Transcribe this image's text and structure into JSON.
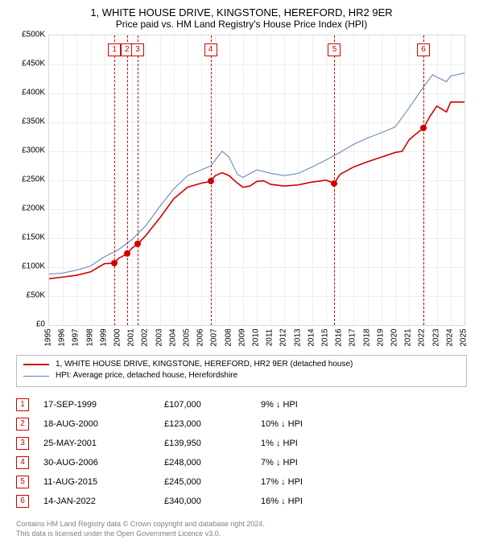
{
  "title": "1, WHITE HOUSE DRIVE, KINGSTONE, HEREFORD, HR2 9ER",
  "subtitle": "Price paid vs. HM Land Registry's House Price Index (HPI)",
  "chart": {
    "type": "line",
    "x_min": 1995,
    "x_max": 2025,
    "x_ticks": [
      1995,
      1996,
      1997,
      1998,
      1999,
      2000,
      2001,
      2002,
      2003,
      2004,
      2005,
      2006,
      2007,
      2008,
      2009,
      2010,
      2011,
      2012,
      2013,
      2014,
      2015,
      2016,
      2017,
      2018,
      2019,
      2020,
      2021,
      2022,
      2023,
      2024,
      2025
    ],
    "y_min": 0,
    "y_max": 500000,
    "y_ticks": [
      0,
      50000,
      100000,
      150000,
      200000,
      250000,
      300000,
      350000,
      400000,
      450000,
      500000
    ],
    "y_tick_labels": [
      "£0",
      "£50K",
      "£100K",
      "£150K",
      "£200K",
      "£250K",
      "£300K",
      "£350K",
      "£400K",
      "£450K",
      "£500K"
    ],
    "grid_color": "#eeeeee",
    "series": [
      {
        "name": "1, WHITE HOUSE DRIVE, KINGSTONE, HEREFORD, HR2 9ER (detached house)",
        "color": "#d00000",
        "width": 1.6,
        "data": [
          [
            1995,
            80000
          ],
          [
            1996,
            83000
          ],
          [
            1997,
            86000
          ],
          [
            1998,
            92000
          ],
          [
            1999,
            106000
          ],
          [
            1999.72,
            107000
          ],
          [
            2000,
            115000
          ],
          [
            2000.63,
            123000
          ],
          [
            2001,
            133000
          ],
          [
            2001.4,
            139950
          ],
          [
            2002,
            155000
          ],
          [
            2003,
            185000
          ],
          [
            2004,
            218000
          ],
          [
            2005,
            238000
          ],
          [
            2006,
            245000
          ],
          [
            2006.66,
            248000
          ],
          [
            2007,
            258000
          ],
          [
            2007.5,
            263000
          ],
          [
            2008,
            258000
          ],
          [
            2008.5,
            247000
          ],
          [
            2009,
            238000
          ],
          [
            2009.5,
            240000
          ],
          [
            2010,
            248000
          ],
          [
            2010.5,
            249000
          ],
          [
            2011,
            243000
          ],
          [
            2012,
            240000
          ],
          [
            2013,
            242000
          ],
          [
            2014,
            247000
          ],
          [
            2015,
            250000
          ],
          [
            2015.61,
            245000
          ],
          [
            2016,
            260000
          ],
          [
            2017,
            273000
          ],
          [
            2018,
            282000
          ],
          [
            2019,
            290000
          ],
          [
            2020,
            298000
          ],
          [
            2020.5,
            300000
          ],
          [
            2021,
            320000
          ],
          [
            2021.5,
            330000
          ],
          [
            2022.04,
            340000
          ],
          [
            2022.5,
            360000
          ],
          [
            2023,
            378000
          ],
          [
            2023.7,
            368000
          ],
          [
            2024,
            385000
          ],
          [
            2025,
            385000
          ]
        ]
      },
      {
        "name": "HPI: Average price, detached house, Herefordshire",
        "color": "#5b7fb3",
        "width": 1,
        "data": [
          [
            1995,
            88000
          ],
          [
            1996,
            90000
          ],
          [
            1997,
            95000
          ],
          [
            1998,
            102000
          ],
          [
            1999,
            118000
          ],
          [
            2000,
            130000
          ],
          [
            2001,
            148000
          ],
          [
            2002,
            172000
          ],
          [
            2003,
            205000
          ],
          [
            2004,
            235000
          ],
          [
            2005,
            258000
          ],
          [
            2006,
            268000
          ],
          [
            2006.7,
            275000
          ],
          [
            2007,
            285000
          ],
          [
            2007.5,
            300000
          ],
          [
            2008,
            290000
          ],
          [
            2008.6,
            260000
          ],
          [
            2009,
            255000
          ],
          [
            2010,
            268000
          ],
          [
            2011,
            262000
          ],
          [
            2012,
            258000
          ],
          [
            2013,
            262000
          ],
          [
            2014,
            273000
          ],
          [
            2015,
            285000
          ],
          [
            2016,
            298000
          ],
          [
            2017,
            312000
          ],
          [
            2018,
            323000
          ],
          [
            2019,
            332000
          ],
          [
            2020,
            342000
          ],
          [
            2021,
            375000
          ],
          [
            2022,
            410000
          ],
          [
            2022.7,
            432000
          ],
          [
            2023,
            428000
          ],
          [
            2023.7,
            420000
          ],
          [
            2024,
            430000
          ],
          [
            2025,
            435000
          ]
        ]
      }
    ],
    "markers": [
      {
        "x": 1999.72,
        "y": 107000
      },
      {
        "x": 2000.63,
        "y": 123000
      },
      {
        "x": 2001.4,
        "y": 139950
      },
      {
        "x": 2006.66,
        "y": 248000
      },
      {
        "x": 2015.61,
        "y": 245000
      },
      {
        "x": 2022.04,
        "y": 340000
      }
    ]
  },
  "legend": [
    {
      "label": "1, WHITE HOUSE DRIVE, KINGSTONE, HEREFORD, HR2 9ER (detached house)",
      "color": "#d00000",
      "width": 2
    },
    {
      "label": "HPI: Average price, detached house, Herefordshire",
      "color": "#5b7fb3",
      "width": 1
    }
  ],
  "events": [
    {
      "n": "1",
      "x": 1999.72,
      "date": "17-SEP-1999",
      "price": "£107,000",
      "delta": "9% ↓ HPI"
    },
    {
      "n": "2",
      "x": 2000.63,
      "date": "18-AUG-2000",
      "price": "£123,000",
      "delta": "10% ↓ HPI"
    },
    {
      "n": "3",
      "x": 2001.4,
      "date": "25-MAY-2001",
      "price": "£139,950",
      "delta": "1% ↓ HPI"
    },
    {
      "n": "4",
      "x": 2006.66,
      "date": "30-AUG-2006",
      "price": "£248,000",
      "delta": "7% ↓ HPI"
    },
    {
      "n": "5",
      "x": 2015.61,
      "date": "11-AUG-2015",
      "price": "£245,000",
      "delta": "17% ↓ HPI"
    },
    {
      "n": "6",
      "x": 2022.04,
      "date": "14-JAN-2022",
      "price": "£340,000",
      "delta": "16% ↓ HPI"
    }
  ],
  "footer1": "Contains HM Land Registry data © Crown copyright and database right 2024.",
  "footer2": "This data is licensed under the Open Government Licence v3.0."
}
